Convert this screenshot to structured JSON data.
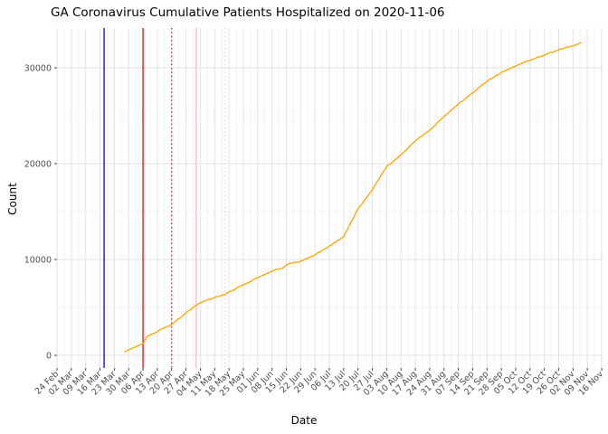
{
  "title": "GA Coronavirus Cumulative Patients Hospitalized on 2020-11-06",
  "chart_data": {
    "type": "line",
    "title": "GA Coronavirus Cumulative Patients Hospitalized on 2020-11-06",
    "xlabel": "Date",
    "ylabel": "Count",
    "grid": "on",
    "legend": "none",
    "x_range": [
      "2020-02-24",
      "2020-11-16"
    ],
    "x_tick_labels": [
      "24 Feb",
      "02 Mar",
      "09 Mar",
      "16 Mar",
      "23 Mar",
      "30 Mar",
      "06 Apr",
      "13 Apr",
      "20 Apr",
      "27 Apr",
      "04 May",
      "11 May",
      "18 May",
      "25 May",
      "01 Jun",
      "08 Jun",
      "15 Jun",
      "22 Jun",
      "29 Jun",
      "06 Jul",
      "13 Jul",
      "20 Jul",
      "27 Jul",
      "03 Aug",
      "10 Aug",
      "17 Aug",
      "24 Aug",
      "31 Aug",
      "07 Sep",
      "14 Sep",
      "21 Sep",
      "28 Sep",
      "05 Oct",
      "12 Oct",
      "19 Oct",
      "26 Oct",
      "02 Nov",
      "09 Nov",
      "16 Nov"
    ],
    "y_tick_labels": [
      "0",
      "10000",
      "20000",
      "30000"
    ],
    "y_ticks": [
      0,
      10000,
      20000,
      30000
    ],
    "y_minor_ticks": [
      5000,
      15000,
      25000
    ],
    "ylim": [
      0,
      34000
    ],
    "series": [
      {
        "name": "cumulative-patients-hospitalized",
        "color": "#FFA500",
        "points": [
          [
            "2020-03-28",
            350
          ],
          [
            "2020-03-30",
            600
          ],
          [
            "2020-04-03",
            950
          ],
          [
            "2020-04-06",
            1200
          ],
          [
            "2020-04-08",
            2000
          ],
          [
            "2020-04-13",
            2500
          ],
          [
            "2020-04-20",
            3200
          ],
          [
            "2020-04-27",
            4450
          ],
          [
            "2020-05-04",
            5500
          ],
          [
            "2020-05-11",
            6050
          ],
          [
            "2020-05-16",
            6350
          ],
          [
            "2020-05-18",
            6600
          ],
          [
            "2020-05-25",
            7350
          ],
          [
            "2020-06-01",
            8100
          ],
          [
            "2020-06-08",
            8800
          ],
          [
            "2020-06-13",
            9100
          ],
          [
            "2020-06-16",
            9550
          ],
          [
            "2020-06-22",
            9800
          ],
          [
            "2020-06-29",
            10500
          ],
          [
            "2020-07-06",
            11400
          ],
          [
            "2020-07-13",
            12400
          ],
          [
            "2020-07-20",
            15300
          ],
          [
            "2020-07-27",
            17300
          ],
          [
            "2020-08-03",
            19700
          ],
          [
            "2020-08-10",
            20900
          ],
          [
            "2020-08-17",
            22400
          ],
          [
            "2020-08-24",
            23500
          ],
          [
            "2020-08-31",
            24900
          ],
          [
            "2020-09-07",
            26200
          ],
          [
            "2020-09-14",
            27400
          ],
          [
            "2020-09-21",
            28600
          ],
          [
            "2020-09-28",
            29500
          ],
          [
            "2020-10-05",
            30200
          ],
          [
            "2020-10-12",
            30800
          ],
          [
            "2020-10-19",
            31300
          ],
          [
            "2020-10-26",
            31900
          ],
          [
            "2020-11-02",
            32300
          ],
          [
            "2020-11-06",
            32600
          ]
        ]
      }
    ],
    "vlines": [
      {
        "name": "blue-solid-event-line",
        "date": "2020-03-18",
        "color": "#0000FF",
        "style": "solid"
      },
      {
        "name": "red-solid-event-line",
        "date": "2020-04-06",
        "color": "#FF0000",
        "style": "solid"
      },
      {
        "name": "red-dotted-event-line",
        "date": "2020-04-20",
        "color": "#FF0000",
        "style": "dotted"
      },
      {
        "name": "pink-solid-event-line",
        "date": "2020-05-02",
        "color": "#FFB6C1",
        "style": "solid"
      },
      {
        "name": "pink-dotted-event-line",
        "date": "2020-05-16",
        "color": "#FFC9D2",
        "style": "dotted"
      }
    ],
    "colors": {
      "line": "#FFA500",
      "grid_major": "#E2E2E2",
      "grid_minor": "#F0F0F0",
      "tick_mark": "#333333",
      "tick_label": "#4D4D4D",
      "background": "#FFFFFF"
    }
  }
}
